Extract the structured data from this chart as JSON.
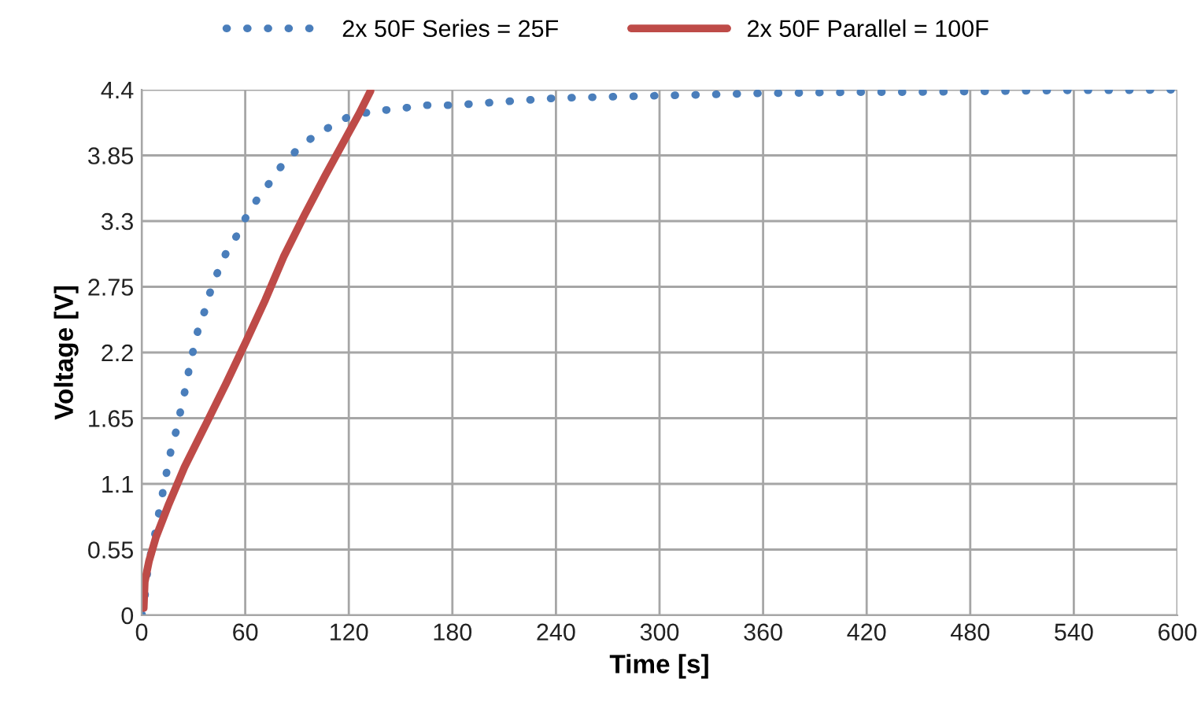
{
  "chart_data": {
    "type": "line",
    "xlabel": "Time [s]",
    "ylabel": "Voltage [V]",
    "xlim": [
      0,
      600
    ],
    "ylim": [
      0,
      4.4
    ],
    "xticks": [
      0,
      60,
      120,
      180,
      240,
      300,
      360,
      420,
      480,
      540,
      600
    ],
    "yticks": [
      0,
      0.55,
      1.1,
      1.65,
      2.2,
      2.75,
      3.3,
      3.85,
      4.4
    ],
    "grid": true,
    "legend": "top",
    "marker": "none",
    "series": [
      {
        "name": "2x 50F Series = 25F",
        "color": "#4a7ebb",
        "line_style": "dotted",
        "x": [
          0,
          0.9,
          3.6,
          7.3,
          9.1,
          10.6,
          12.4,
          14.2,
          16.0,
          17.5,
          20.2,
          22.1,
          23.9,
          26.0,
          27.5,
          29.6,
          31.4,
          33.8,
          37.2,
          39.3,
          42.6,
          45.9,
          49.8,
          54.4,
          58.3,
          62.8,
          67.7,
          73.1,
          78.2,
          83.7,
          89.7,
          97.0,
          104.2,
          111.8,
          119.3,
          128.1,
          136.6,
          145,
          153.8,
          162.5,
          180,
          210,
          240,
          270,
          300,
          330,
          360,
          390,
          420,
          450,
          480,
          510,
          540,
          570,
          600
        ],
        "values": [
          0,
          0.02,
          0.4,
          0.65,
          0.78,
          0.91,
          1.04,
          1.18,
          1.3,
          1.43,
          1.55,
          1.68,
          1.81,
          1.93,
          2.07,
          2.2,
          2.32,
          2.45,
          2.57,
          2.69,
          2.82,
          2.94,
          3.06,
          3.16,
          3.28,
          3.39,
          3.5,
          3.6,
          3.71,
          3.81,
          3.89,
          3.98,
          4.05,
          4.11,
          4.17,
          4.2,
          4.23,
          4.23,
          4.25,
          4.27,
          4.27,
          4.3,
          4.33,
          4.34,
          4.35,
          4.36,
          4.37,
          4.375,
          4.38,
          4.38,
          4.385,
          4.39,
          4.395,
          4.395,
          4.4
        ]
      },
      {
        "name": "2x 50F Parallel = 100F",
        "color": "#be4b48",
        "line_style": "solid",
        "x": [
          0.5,
          1.2,
          1.8,
          4.2,
          8.2,
          15.7,
          24.8,
          36.9,
          48.9,
          60.4,
          71.6,
          82.2,
          94.3,
          106.3,
          118.4,
          126,
          132.6
        ],
        "values": [
          0.1,
          0.06,
          0.28,
          0.45,
          0.65,
          0.93,
          1.24,
          1.59,
          1.94,
          2.29,
          2.64,
          3.0,
          3.35,
          3.68,
          4.0,
          4.2,
          4.39
        ]
      }
    ]
  }
}
